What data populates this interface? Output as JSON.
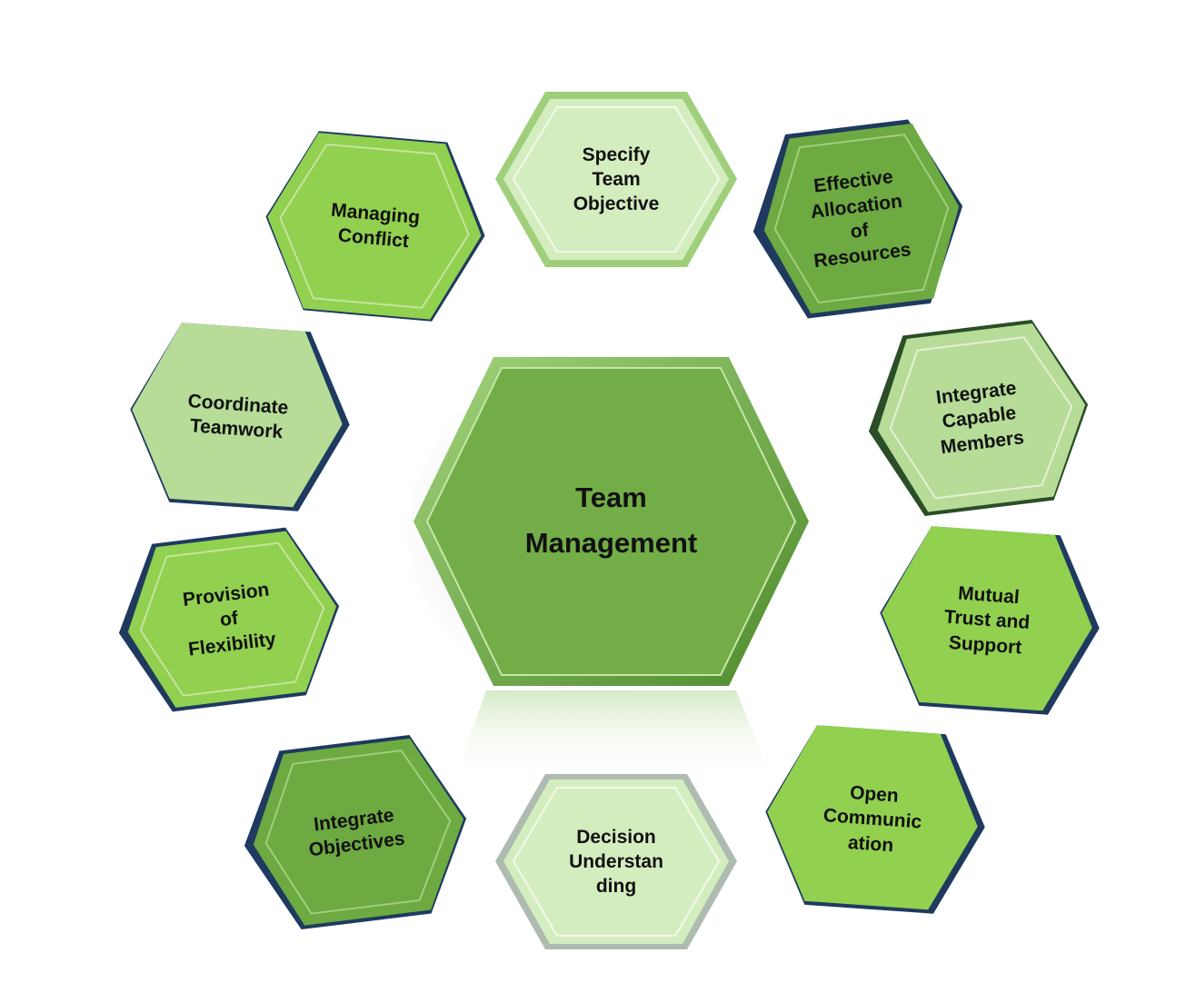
{
  "center": {
    "label": "Team\nManagement",
    "color": "#72ad47"
  },
  "nodes": [
    {
      "id": "specify-team-objective",
      "label": "Specify\nTeam\nObjective",
      "color": "#d4edbf"
    },
    {
      "id": "effective-allocation",
      "label": "Effective\nAllocation\nof\nResources",
      "color": "#6daa42"
    },
    {
      "id": "integrate-capable-members",
      "label": "Integrate\nCapable\nMembers",
      "color": "#b6dc98"
    },
    {
      "id": "mutual-trust",
      "label": "Mutual\nTrust and\nSupport",
      "color": "#92d050"
    },
    {
      "id": "open-communication",
      "label": "Open\nCommunic\nation",
      "color": "#92d050"
    },
    {
      "id": "decision-understanding",
      "label": "Decision\nUnderstan\nding",
      "color": "#d4edbf"
    },
    {
      "id": "integrate-objectives",
      "label": "Integrate\nObjectives",
      "color": "#6daa42"
    },
    {
      "id": "provision-of-flexibility",
      "label": "Provision\nof\nFlexibility",
      "color": "#92d050"
    },
    {
      "id": "coordinate-teamwork",
      "label": "Coordinate\nTeamwork",
      "color": "#b6dc98"
    },
    {
      "id": "managing-conflict",
      "label": "Managing\nConflict",
      "color": "#92d050"
    }
  ]
}
